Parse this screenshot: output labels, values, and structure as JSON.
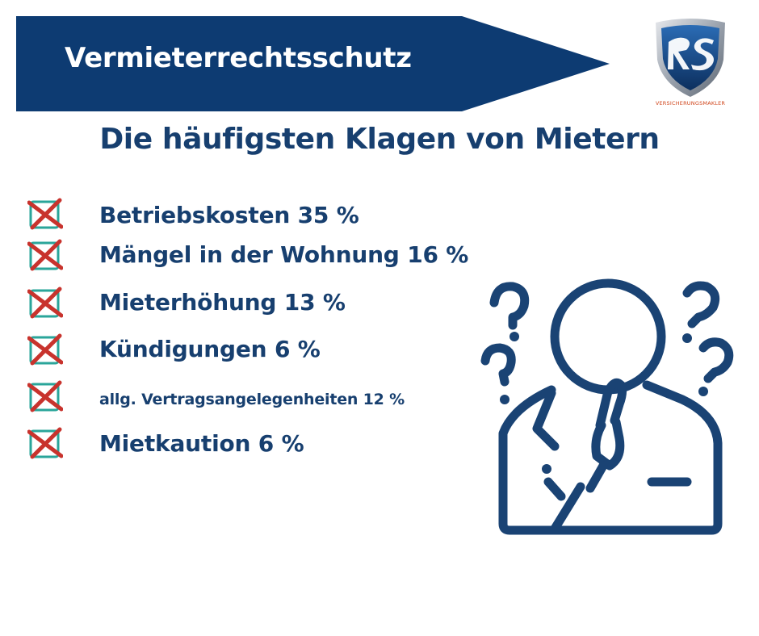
{
  "banner": {
    "title": "Vermieterrechtsschutz",
    "color": "#0d3b72"
  },
  "logo": {
    "monogram": "RS",
    "caption": "VERSICHERUNGSMAKLER"
  },
  "subtitle": "Die häufigsten Klagen von Mietern",
  "complaints": [
    {
      "label": "Betriebskosten 35 %",
      "icon": "crossed-checkbox-icon"
    },
    {
      "label": "Mängel in der Wohnung 16 %",
      "icon": "crossed-checkbox-icon"
    },
    {
      "label": "Mieterhöhung 13 %",
      "icon": "crossed-checkbox-icon"
    },
    {
      "label": "Kündigungen 6 %",
      "icon": "crossed-checkbox-icon"
    },
    {
      "label": "allg. Vertragsangelegenheiten 12 %",
      "icon": "crossed-checkbox-icon"
    },
    {
      "label": "Mietkaution 6 %",
      "icon": "crossed-checkbox-icon"
    }
  ],
  "illustration": "thinking-person-icon",
  "colors": {
    "primary": "#173f6f",
    "check_box": "#2aa59a",
    "cross": "#c8332d",
    "logo_accent": "#d0461c"
  }
}
